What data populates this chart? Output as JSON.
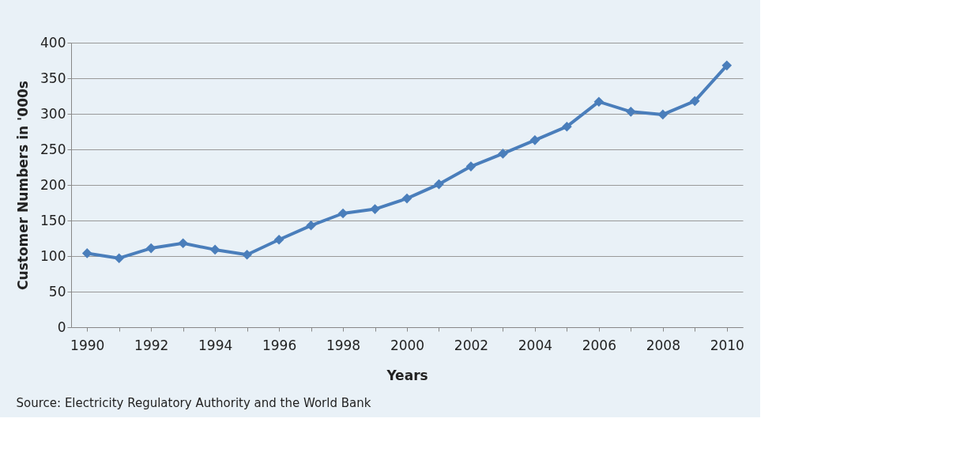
{
  "chart_data": {
    "type": "line",
    "xlabel": "Years",
    "ylabel": "Customer Numbers in '000s",
    "categories": [
      "1990",
      null,
      "1992",
      null,
      "1994",
      null,
      "1996",
      null,
      "1998",
      null,
      "2000",
      null,
      "2002",
      null,
      "2004",
      null,
      "2006",
      null,
      "2008",
      null,
      "2010"
    ],
    "series": [
      {
        "color": "#4a7ebb",
        "values": [
          104,
          97,
          111,
          118,
          109,
          102,
          123,
          143,
          160,
          166,
          181,
          201,
          226,
          244,
          263,
          282,
          317,
          303,
          299,
          318,
          368
        ]
      }
    ],
    "ylim": [
      0,
      400
    ],
    "yticks": [
      0,
      50,
      100,
      150,
      200,
      250,
      300,
      350,
      400
    ],
    "grid": "y",
    "marker": "diamond",
    "line_style": "solid",
    "annotations": [
      "Source: Electricity Regulatory Authority and the World Bank"
    ]
  }
}
